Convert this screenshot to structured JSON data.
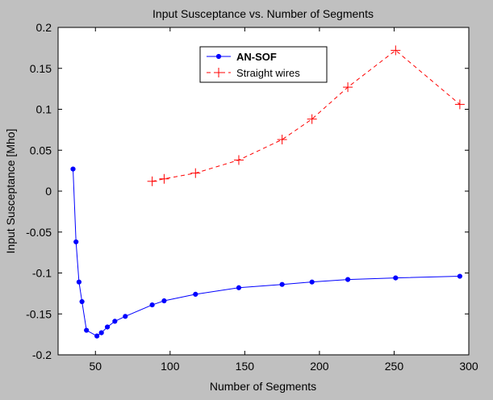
{
  "chart_data": {
    "type": "line",
    "title": "Input Susceptance vs. Number of Segments",
    "xlabel": "Number of Segments",
    "ylabel": "Input Susceptance [Mho]",
    "xlim": [
      25,
      300
    ],
    "ylim": [
      -0.2,
      0.2
    ],
    "xticks": [
      50,
      100,
      150,
      200,
      250,
      300
    ],
    "yticks": [
      -0.2,
      -0.15,
      -0.1,
      -0.05,
      0,
      0.05,
      0.1,
      0.15,
      0.2
    ],
    "xtick_labels": [
      "50",
      "100",
      "150",
      "200",
      "250",
      "300"
    ],
    "ytick_labels": [
      "-0.2",
      "-0.15",
      "-0.1",
      "-0.05",
      "0",
      "0.05",
      "0.1",
      "0.15",
      "0.2"
    ],
    "grid": false,
    "legend_position": "top-center",
    "series": [
      {
        "name": "AN-SOF",
        "color": "#0000ff",
        "line_style": "solid",
        "marker": "dot",
        "bold_label": true,
        "x": [
          35,
          37,
          39,
          41,
          44,
          51,
          54,
          58,
          63,
          70,
          88,
          96,
          117,
          146,
          175,
          195,
          219,
          251,
          294
        ],
        "y": [
          0.027,
          -0.062,
          -0.111,
          -0.135,
          -0.17,
          -0.177,
          -0.173,
          -0.166,
          -0.159,
          -0.153,
          -0.139,
          -0.134,
          -0.126,
          -0.118,
          -0.114,
          -0.111,
          -0.108,
          -0.106,
          -0.104
        ]
      },
      {
        "name": "Straight wires",
        "color": "#ff0000",
        "line_style": "dashed",
        "marker": "plus",
        "bold_label": false,
        "x": [
          88,
          96,
          117,
          146,
          175,
          195,
          219,
          251,
          294
        ],
        "y": [
          0.012,
          0.015,
          0.022,
          0.038,
          0.063,
          0.088,
          0.127,
          0.172,
          0.106
        ]
      }
    ]
  }
}
